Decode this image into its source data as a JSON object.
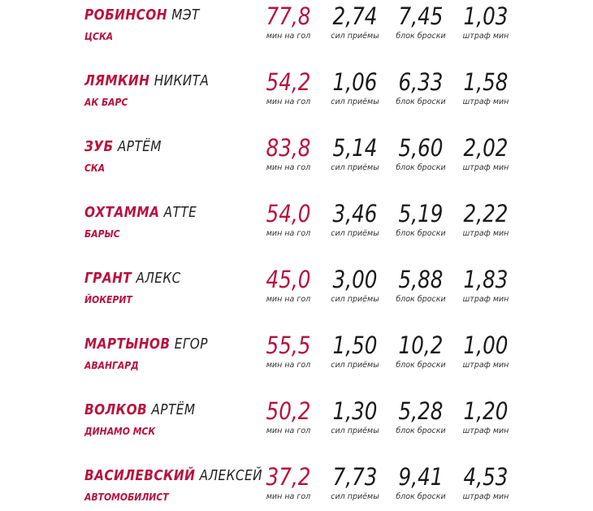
{
  "columns": [
    "мин на гол",
    "сил приёмы",
    "блок броски",
    "штраф мин"
  ],
  "players": [
    {
      "surname": "РОБИНСОН",
      "name": "МЭТ",
      "team": "ЦСКА",
      "stats": [
        "77,8",
        "2,74",
        "7,45",
        "1,03"
      ]
    },
    {
      "surname": "ЛЯМКИН",
      "name": "НИКИТА",
      "team": "АК БАРС",
      "stats": [
        "54,2",
        "1,06",
        "6,33",
        "1,58"
      ]
    },
    {
      "surname": "ЗУБ",
      "name": "АРТЁМ",
      "team": "СКА",
      "stats": [
        "83,8",
        "5,14",
        "5,60",
        "2,02"
      ]
    },
    {
      "surname": "ОХТАММА",
      "name": "АТТЕ",
      "team": "БАРЫС",
      "stats": [
        "54,0",
        "3,46",
        "5,19",
        "2,22"
      ]
    },
    {
      "surname": "ГРАНТ",
      "name": "АЛЕКС",
      "team": "ЙОКЕРИТ",
      "stats": [
        "45,0",
        "3,00",
        "5,88",
        "1,83"
      ]
    },
    {
      "surname": "МАРТЫНОВ",
      "name": "ЕГОР",
      "team": "АВАНГАРД",
      "stats": [
        "55,5",
        "1,50",
        "10,2",
        "1,00"
      ]
    },
    {
      "surname": "ВОЛКОВ",
      "name": "АРТЁМ",
      "team": "ДИНАМО МСК",
      "stats": [
        "50,2",
        "1,30",
        "5,28",
        "1,20"
      ]
    },
    {
      "surname": "ВАСИЛЕВСКИЙ",
      "name": "АЛЕКСЕЙ",
      "team": "АВТОМОБИЛИСТ",
      "stats": [
        "37,2",
        "7,73",
        "9,41",
        "4,53"
      ]
    }
  ]
}
